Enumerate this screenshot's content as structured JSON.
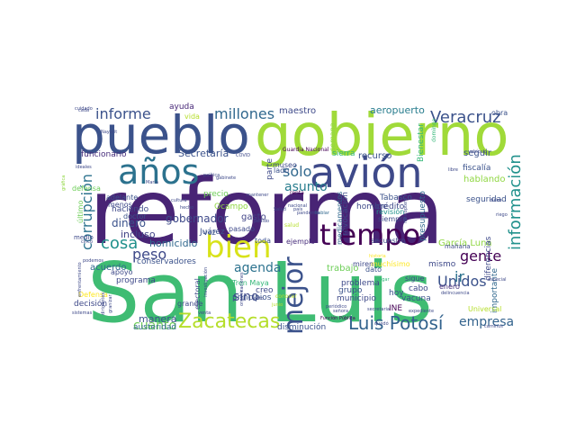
{
  "words": [
    {
      "text": "reforma",
      "color": "#482475"
    },
    {
      "text": "San Luis",
      "color": "#3fbc73"
    },
    {
      "text": "gobierno",
      "color": "#a0da39"
    },
    {
      "text": "pueblo",
      "color": "#3b528b"
    },
    {
      "text": "avión",
      "color": "#3e4989"
    },
    {
      "text": "años",
      "color": "#2c728e"
    },
    {
      "text": "bien",
      "color": "#d8e219"
    },
    {
      "text": "tiempo",
      "color": "#440154"
    },
    {
      "text": "mejor",
      "color": "#3b528b"
    },
    {
      "text": "Zacatecas",
      "color": "#b5de2b"
    },
    {
      "text": "Luis Potosí",
      "color": "#33638d"
    },
    {
      "text": "información",
      "color": "#21918c"
    },
    {
      "text": "Veracruz",
      "color": "#3b528b"
    },
    {
      "text": "millones",
      "color": "#31688e"
    },
    {
      "text": "informe",
      "color": "#3b528b"
    },
    {
      "text": "corrupción",
      "color": "#2c728e"
    },
    {
      "text": "cosa",
      "color": "#21918c"
    },
    {
      "text": "peso",
      "color": "#3e4989"
    },
    {
      "text": "sólo",
      "color": "#31688e"
    },
    {
      "text": "asunto",
      "color": "#287d8e"
    },
    {
      "text": "Unidos",
      "color": "#3b528b"
    },
    {
      "text": "gente",
      "color": "#440154"
    },
    {
      "text": "empresa",
      "color": "#33638d"
    },
    {
      "text": "agenda",
      "color": "#2c728e"
    },
    {
      "text": "cuánto",
      "color": "#6ece58"
    },
    {
      "text": "sino",
      "color": "#3e4989"
    },
    {
      "text": "ir",
      "color": "#2c728e"
    },
    {
      "text": "aeropuerto",
      "color": "#287d8e"
    },
    {
      "text": "maestro",
      "color": "#3e4989"
    },
    {
      "text": "ayuda",
      "color": "#482878"
    },
    {
      "text": "Secretaría",
      "color": "#3b528b"
    },
    {
      "text": "funcionario",
      "color": "#472d7b"
    },
    {
      "text": "gobernador",
      "color": "#3e4989"
    },
    {
      "text": "dinero",
      "color": "#3b528b"
    },
    {
      "text": "homicidio",
      "color": "#31688e"
    },
    {
      "text": "incluso",
      "color": "#414487"
    },
    {
      "text": "conservadores",
      "color": "#3b528b"
    },
    {
      "text": "acuerdo",
      "color": "#31688e"
    },
    {
      "text": "programa",
      "color": "#3e4989"
    },
    {
      "text": "decisión",
      "color": "#3e4989"
    },
    {
      "text": "Defensa",
      "color": "#fde725"
    },
    {
      "text": "manera",
      "color": "#3b528b"
    },
    {
      "text": "austeridad",
      "color": "#31688e"
    },
    {
      "text": "disminución",
      "color": "#3b528b"
    },
    {
      "text": "creo",
      "color": "#3e4989"
    },
    {
      "text": "principios",
      "color": "#3b528b"
    },
    {
      "text": "Tren Maya",
      "color": "#35b779"
    },
    {
      "text": "gasto",
      "color": "#414487"
    },
    {
      "text": "pasado",
      "color": "#3e4989"
    },
    {
      "text": "toda",
      "color": "#3b528b"
    },
    {
      "text": "ejemplo",
      "color": "#472d7b"
    },
    {
      "text": "trabajo",
      "color": "#6ece58"
    },
    {
      "text": "problema",
      "color": "#3e4989"
    },
    {
      "text": "grupo",
      "color": "#3b528b"
    },
    {
      "text": "INE",
      "color": "#440154"
    },
    {
      "text": "hombre",
      "color": "#3e4989"
    },
    {
      "text": "seguir",
      "color": "#3b528b"
    },
    {
      "text": "fiscalía",
      "color": "#3b528b"
    },
    {
      "text": "hablando",
      "color": "#90d743"
    },
    {
      "text": "seguridad",
      "color": "#3b528b"
    },
    {
      "text": "García Luna",
      "color": "#90d743"
    },
    {
      "text": "Tabasco",
      "color": "#3b528b"
    },
    {
      "text": "crédito",
      "color": "#3e4989"
    },
    {
      "text": "revisión",
      "color": "#21918c"
    },
    {
      "text": "siempre",
      "color": "#3e4989"
    },
    {
      "text": "presupuesto",
      "color": "#31688e"
    },
    {
      "text": "mismo",
      "color": "#3e4989"
    },
    {
      "text": "vacuna",
      "color": "#3b528b"
    },
    {
      "text": "hoy",
      "color": "#3b528b"
    },
    {
      "text": "cabo",
      "color": "#3e4989"
    },
    {
      "text": "enero",
      "color": "#472d7b"
    },
    {
      "text": "sigue",
      "color": "#3e4989"
    },
    {
      "text": "dato",
      "color": "#3b528b"
    },
    {
      "text": "municipio",
      "color": "#3e4989"
    },
    {
      "text": "importante",
      "color": "#31688e"
    },
    {
      "text": "revocación",
      "color": "#3e4989"
    },
    {
      "text": "medicamentos",
      "color": "#31688e"
    },
    {
      "text": "parte",
      "color": "#3e4989"
    },
    {
      "text": "recurso",
      "color": "#3b528b"
    },
    {
      "text": "sierra",
      "color": "#35b779"
    },
    {
      "text": "semana",
      "color": "#90d743"
    },
    {
      "text": "Bienestar",
      "color": "#35b779"
    },
    {
      "text": "diferencias",
      "color": "#3e4989"
    },
    {
      "text": "Ocampo",
      "color": "#90d743"
    },
    {
      "text": "Juárez",
      "color": "#3b528b"
    },
    {
      "text": "grande",
      "color": "#3e4989"
    },
    {
      "text": "vez",
      "color": "#3b528b"
    },
    {
      "text": "adelante",
      "color": "#3b528b"
    },
    {
      "text": "haciendo",
      "color": "#3e4989"
    },
    {
      "text": "menos",
      "color": "#3e4989"
    },
    {
      "text": "doctor",
      "color": "#3b528b"
    },
    {
      "text": "apoyo",
      "color": "#3e4989"
    },
    {
      "text": "electoral",
      "color": "#3e4989"
    },
    {
      "text": "último",
      "color": "#6ece58"
    },
    {
      "text": "medio",
      "color": "#3e4989"
    },
    {
      "text": "vida",
      "color": "#b5de2b"
    },
    {
      "text": "obra",
      "color": "#3b528b"
    },
    {
      "text": "mañana",
      "color": "#3e4989"
    },
    {
      "text": "Universal",
      "color": "#b5de2b"
    },
    {
      "text": "muchísimo",
      "color": "#fde725"
    },
    {
      "text": "secuestro",
      "color": "#3e4989"
    },
    {
      "text": "miren",
      "color": "#3e4989"
    },
    {
      "text": "precio",
      "color": "#6ece58"
    },
    {
      "text": "museo",
      "color": "#3e4989"
    },
    {
      "text": "lado",
      "color": "#3b528b"
    },
    {
      "text": "defensa",
      "color": "#6ece58"
    },
    {
      "text": "Guardia Nacional",
      "color": "#440154"
    },
    {
      "text": "domingo",
      "color": "#35b779"
    },
    {
      "text": "cada",
      "color": "#3e4989"
    },
    {
      "text": "salud",
      "color": "#b5de2b"
    },
    {
      "text": "conocer",
      "color": "#b5de2b"
    },
    {
      "text": "junio",
      "color": "#b5de2b"
    },
    {
      "text": "renta",
      "color": "#440154"
    },
    {
      "text": "pagar",
      "color": "#35b779"
    },
    {
      "text": "historia",
      "color": "#fde725"
    },
    {
      "text": "hablar",
      "color": "#31688e"
    },
    {
      "text": "pandemia",
      "color": "#3e4989"
    },
    {
      "text": "libre",
      "color": "#3e4989"
    },
    {
      "text": "dicho",
      "color": "#3e4989"
    },
    {
      "text": "cinco",
      "color": "#3e4989"
    },
    {
      "text": "ideales",
      "color": "#3e4989"
    },
    {
      "text": "cultura",
      "color": "#3e4989"
    },
    {
      "text": "hecho",
      "color": "#3e4989"
    },
    {
      "text": "Nayarit",
      "color": "#3e4989"
    },
    {
      "text": "gráfica",
      "color": "#90d743"
    },
    {
      "text": "caminos",
      "color": "#3e4989"
    },
    {
      "text": "Función Pública",
      "color": "#440154"
    },
    {
      "text": "secretaria",
      "color": "#3e4989"
    },
    {
      "text": "vehículo",
      "color": "#3e4989"
    },
    {
      "text": "especial",
      "color": "#3e4989"
    },
    {
      "text": "delincuencia",
      "color": "#3e4989"
    },
    {
      "text": "quedó",
      "color": "#3e4989"
    },
    {
      "text": "sistemas",
      "color": "#3e4989"
    },
    {
      "text": "dirigentes",
      "color": "#3e4989"
    },
    {
      "text": "granizar",
      "color": "#3e4989"
    },
    {
      "text": "investigación",
      "color": "#3e4989"
    },
    {
      "text": "organizaciones",
      "color": "#3e4989"
    },
    {
      "text": "periódico",
      "color": "#3e4989"
    },
    {
      "text": "expediente",
      "color": "#3e4989"
    },
    {
      "text": "señora",
      "color": "#3e4989"
    },
    {
      "text": "pedido",
      "color": "#3e4989"
    },
    {
      "text": "mantener",
      "color": "#3e4989"
    },
    {
      "text": "gabinete",
      "color": "#3e4989"
    },
    {
      "text": "política",
      "color": "#3e4989"
    },
    {
      "text": "nacional",
      "color": "#3e4989"
    },
    {
      "text": "venta",
      "color": "#3e4989"
    },
    {
      "text": "acto",
      "color": "#3e4989"
    },
    {
      "text": "enfrentamiento",
      "color": "#3e4989"
    },
    {
      "text": "podemos",
      "color": "#3e4989"
    },
    {
      "text": "país",
      "color": "#3e4989"
    },
    {
      "text": "cuidado",
      "color": "#3e4989"
    },
    {
      "text": "helicóptero",
      "color": "#3e4989"
    },
    {
      "text": "riego",
      "color": "#3e4989"
    },
    {
      "text": "María",
      "color": "#3e4989"
    },
    {
      "text": "COVID",
      "color": "#3e4989"
    },
    {
      "text": "Salud",
      "color": "#3e4989"
    }
  ]
}
